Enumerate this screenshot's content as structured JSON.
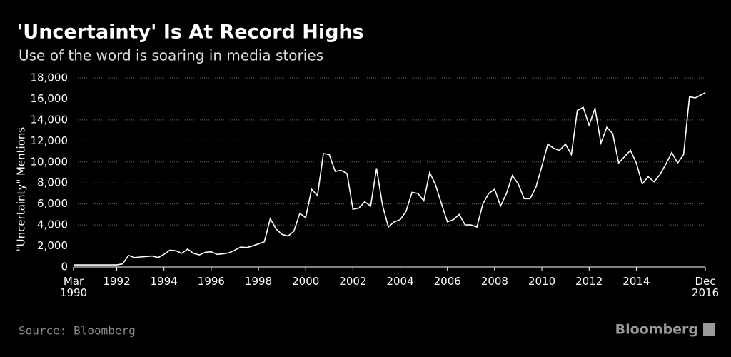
{
  "chart_data": {
    "type": "line",
    "title": "'Uncertainty' Is At Record Highs",
    "subtitle": "Use of the word is soaring in media stories",
    "y_label": "\"Uncertainty\" Mentions",
    "source": "Source: Bloomberg",
    "brand": "Bloomberg",
    "grid": true,
    "xlim": [
      1990.17,
      2016.92
    ],
    "xticks": [
      {
        "value": 1990.17,
        "label": "Mar\n1990"
      },
      1992,
      1994,
      1996,
      1998,
      2000,
      2002,
      2004,
      2006,
      2008,
      2010,
      2012,
      2014,
      {
        "value": 2016.92,
        "label": "Dec\n2016"
      }
    ],
    "ylim": [
      0,
      18000
    ],
    "yticks": [
      0,
      {
        "value": 2000,
        "label": "2,000"
      },
      {
        "value": 4000,
        "label": "4,000"
      },
      {
        "value": 6000,
        "label": "6,000"
      },
      {
        "value": 8000,
        "label": "8,000"
      },
      {
        "value": 10000,
        "label": "10,000"
      },
      {
        "value": 12000,
        "label": "12,000"
      },
      {
        "value": 14000,
        "label": "14,000"
      },
      {
        "value": 16000,
        "label": "16,000"
      },
      {
        "value": 18000,
        "label": "18,000"
      }
    ],
    "series": [
      {
        "color": "#ffffff",
        "x": [
          1990.17,
          1990.5,
          1990.75,
          1991,
          1991.25,
          1991.5,
          1991.75,
          1992,
          1992.25,
          1992.5,
          1992.75,
          1993,
          1993.25,
          1993.5,
          1993.75,
          1994,
          1994.25,
          1994.5,
          1994.75,
          1995,
          1995.25,
          1995.5,
          1995.75,
          1996,
          1996.25,
          1996.5,
          1996.75,
          1997,
          1997.25,
          1997.5,
          1997.75,
          1998,
          1998.25,
          1998.5,
          1998.75,
          1999,
          1999.25,
          1999.5,
          1999.75,
          2000,
          2000.25,
          2000.5,
          2000.75,
          2001,
          2001.25,
          2001.5,
          2001.75,
          2002,
          2002.25,
          2002.5,
          2002.75,
          2003,
          2003.25,
          2003.5,
          2003.75,
          2004,
          2004.25,
          2004.5,
          2004.75,
          2005,
          2005.25,
          2005.5,
          2005.75,
          2006,
          2006.25,
          2006.5,
          2006.75,
          2007,
          2007.25,
          2007.5,
          2007.75,
          2008,
          2008.25,
          2008.5,
          2008.75,
          2009,
          2009.25,
          2009.5,
          2009.75,
          2010,
          2010.25,
          2010.5,
          2010.75,
          2011,
          2011.25,
          2011.5,
          2011.75,
          2012,
          2012.25,
          2012.5,
          2012.75,
          2013,
          2013.25,
          2013.5,
          2013.75,
          2014,
          2014.25,
          2014.5,
          2014.75,
          2015,
          2015.25,
          2015.5,
          2015.75,
          2016,
          2016.25,
          2016.5,
          2016.92
        ],
        "values": [
          200,
          200,
          200,
          200,
          200,
          200,
          200,
          200,
          300,
          1100,
          900,
          950,
          1000,
          1050,
          900,
          1200,
          1600,
          1550,
          1300,
          1700,
          1300,
          1150,
          1400,
          1450,
          1200,
          1250,
          1350,
          1600,
          1900,
          1850,
          2000,
          2200,
          2400,
          4600,
          3600,
          3100,
          2950,
          3400,
          5100,
          4700,
          7400,
          6800,
          10800,
          10700,
          9100,
          9200,
          8900,
          5500,
          5600,
          6200,
          5800,
          9400,
          5900,
          3800,
          4300,
          4500,
          5300,
          7100,
          7000,
          6300,
          9000,
          7800,
          6000,
          4300,
          4500,
          5000,
          4000,
          4000,
          3800,
          6000,
          7000,
          7400,
          5800,
          7000,
          8700,
          7900,
          6500,
          6500,
          7600,
          9600,
          11700,
          11300,
          11100,
          11700,
          10700,
          14900,
          15200,
          13500,
          15100,
          11800,
          13300,
          12700,
          9900,
          10500,
          11100,
          9900,
          7900,
          8600,
          8100,
          8800,
          9800,
          10900,
          9900,
          10700,
          16200,
          16100,
          16600
        ]
      }
    ]
  }
}
